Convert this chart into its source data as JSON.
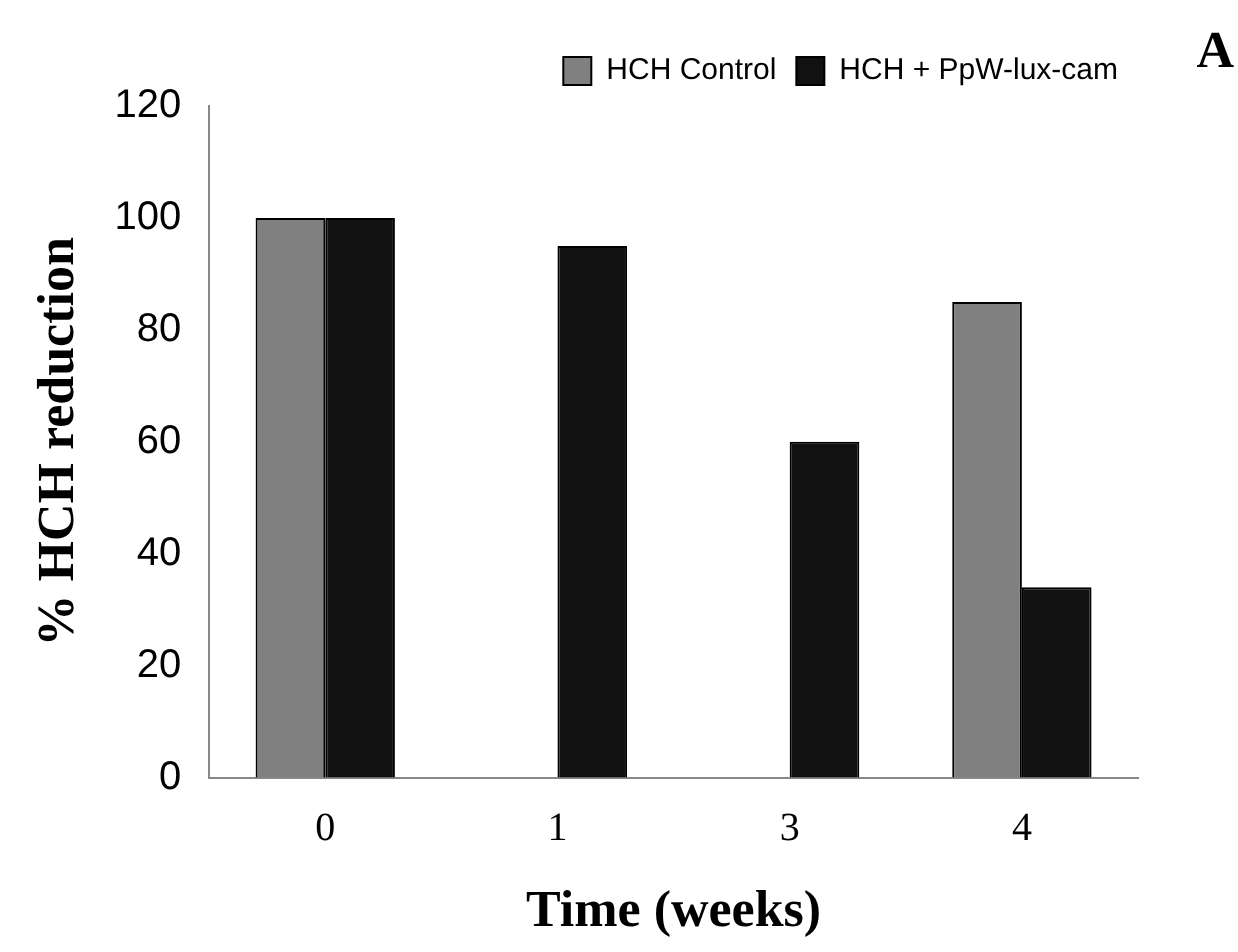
{
  "chart_data": {
    "type": "bar",
    "xlabel": "Time (weeks)",
    "ylabel": "% HCH reduction",
    "annotations": [
      "A"
    ],
    "categories": [
      "0",
      "1",
      "3",
      "4"
    ],
    "series": [
      {
        "name": "HCH Control",
        "color": "#808080",
        "values": [
          100,
          0,
          0,
          85
        ]
      },
      {
        "name": "HCH + PpW-lux-cam",
        "color": "#111111",
        "values": [
          100,
          95,
          60,
          34
        ]
      }
    ],
    "ylim": [
      0,
      120
    ],
    "yticks": [
      0,
      20,
      40,
      60,
      80,
      100,
      120
    ],
    "grid": false,
    "legend": "top right"
  }
}
